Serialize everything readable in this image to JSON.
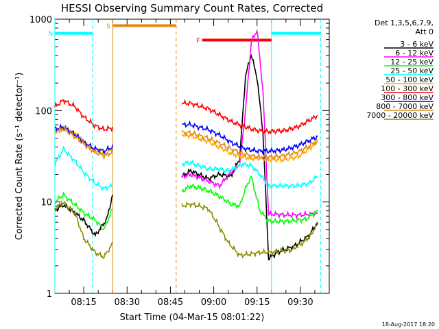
{
  "chart_data": {
    "type": "line",
    "title": "HESSI Observing Summary Count Rates, Corrected",
    "xlabel": "Start Time (04-Mar-15 08:01:22)",
    "ylabel": "Corrected Count Rate (s⁻¹ detector⁻¹)",
    "y_scale": "log",
    "ylim": [
      1,
      1000
    ],
    "xlim": [
      "08:05",
      "09:40"
    ],
    "x_tick_labels": [
      "08:15",
      "08:30",
      "08:45",
      "09:00",
      "09:15",
      "09:30"
    ],
    "y_tick_labels": [
      "1",
      "10",
      "100",
      "1000"
    ],
    "grid": false,
    "legend_position": "top-right",
    "legend_header": [
      "Det 1,3,5,6,7,9,",
      "Att 0"
    ],
    "footer_date": "18-Aug-2017 18:20",
    "series": [
      {
        "name": "3 - 6 keV",
        "color": "#000000",
        "x": [
          "08:05",
          "08:08",
          "08:12",
          "08:15",
          "08:19",
          "08:23",
          "08:25",
          "08:49",
          "08:52",
          "08:58",
          "09:02",
          "09:06",
          "09:09",
          "09:11",
          "09:13",
          "09:15",
          "09:17",
          "09:19",
          "09:22",
          "09:28",
          "09:33",
          "09:36"
        ],
        "values": [
          8.2,
          9.3,
          7.6,
          6.3,
          4.3,
          6.5,
          12,
          19,
          22,
          18,
          20,
          19,
          30,
          240,
          410,
          230,
          60,
          2.4,
          2.8,
          3.3,
          4.3,
          6.0
        ]
      },
      {
        "name": "6 - 12 keV",
        "color": "#ff00ff",
        "x": [
          "08:49",
          "08:52",
          "08:58",
          "09:02",
          "09:06",
          "09:09",
          "09:11",
          "09:13",
          "09:15",
          "09:17",
          "09:19",
          "09:25",
          "09:30",
          "09:36"
        ],
        "values": [
          19,
          20,
          17,
          15,
          21,
          26,
          100,
          560,
          760,
          170,
          7.4,
          7.2,
          7.2,
          7.5
        ]
      },
      {
        "name": "12 - 25 keV",
        "color": "#00ff00",
        "x": [
          "08:05",
          "08:08",
          "08:12",
          "08:15",
          "08:19",
          "08:22",
          "08:25",
          "08:49",
          "08:52",
          "08:56",
          "08:59",
          "09:03",
          "09:06",
          "09:09",
          "09:11",
          "09:13",
          "09:16",
          "09:19",
          "09:22",
          "09:27",
          "09:32",
          "09:36"
        ],
        "values": [
          10,
          12,
          9.3,
          7.6,
          6.3,
          5.0,
          8.5,
          13,
          15,
          14,
          13,
          11,
          9.5,
          9.0,
          14,
          19,
          8.0,
          6.2,
          6.1,
          6.2,
          6.5,
          8.0
        ]
      },
      {
        "name": "25 - 50 keV",
        "color": "#00ffff",
        "x": [
          "08:05",
          "08:08",
          "08:12",
          "08:15",
          "08:19",
          "08:22",
          "08:25",
          "08:49",
          "08:52",
          "08:58",
          "09:01",
          "09:04",
          "09:07",
          "09:10",
          "09:13",
          "09:16",
          "09:19",
          "09:24",
          "09:29",
          "09:33",
          "09:36"
        ],
        "values": [
          26,
          38,
          28,
          21,
          16,
          14,
          15,
          26,
          27,
          23,
          23,
          22,
          23,
          26,
          25,
          20,
          15,
          15,
          15,
          16,
          19
        ]
      },
      {
        "name": "50 - 100 keV",
        "color": "#ffaa00",
        "x": [
          "08:05",
          "08:08",
          "08:12",
          "08:15",
          "08:19",
          "08:22",
          "08:25",
          "08:49",
          "08:52",
          "08:58",
          "09:02",
          "09:06",
          "09:10",
          "09:13",
          "09:16",
          "09:19",
          "09:24",
          "09:29",
          "09:33",
          "09:36"
        ],
        "values": [
          58,
          64,
          56,
          45,
          36,
          34,
          37,
          55,
          53,
          46,
          40,
          34,
          31,
          30,
          30,
          29,
          29,
          31,
          38,
          46
        ]
      },
      {
        "name": "100 - 300 keV",
        "color": "#ff0000",
        "x": [
          "08:05",
          "08:08",
          "08:12",
          "08:15",
          "08:19",
          "08:22",
          "08:25",
          "08:49",
          "08:52",
          "08:58",
          "09:02",
          "09:06",
          "09:10",
          "09:13",
          "09:16",
          "09:19",
          "09:24",
          "09:29",
          "09:33",
          "09:36"
        ],
        "values": [
          110,
          130,
          110,
          85,
          68,
          62,
          65,
          120,
          120,
          105,
          90,
          76,
          68,
          63,
          60,
          59,
          60,
          66,
          78,
          88
        ]
      },
      {
        "name": "300 - 800 keV",
        "color": "#0000ff",
        "x": [
          "08:05",
          "08:08",
          "08:12",
          "08:15",
          "08:19",
          "08:22",
          "08:25",
          "08:49",
          "08:52",
          "08:58",
          "09:02",
          "09:06",
          "09:10",
          "09:13",
          "09:16",
          "09:19",
          "09:24",
          "09:29",
          "09:33",
          "09:36"
        ],
        "values": [
          63,
          66,
          55,
          45,
          38,
          36,
          40,
          70,
          70,
          62,
          54,
          45,
          39,
          37,
          36,
          36,
          37,
          41,
          47,
          52
        ]
      },
      {
        "name": "800 - 7000 keV",
        "color": "#e08c1e",
        "x": [
          "08:05",
          "08:08",
          "08:12",
          "08:15",
          "08:19",
          "08:22",
          "08:25",
          "08:49",
          "08:52",
          "08:58",
          "09:02",
          "09:06",
          "09:10",
          "09:13",
          "09:16",
          "09:19",
          "09:24",
          "09:29",
          "09:33",
          "09:36"
        ],
        "values": [
          60,
          63,
          52,
          43,
          35,
          32,
          35,
          58,
          57,
          50,
          44,
          38,
          34,
          32,
          31,
          31,
          32,
          35,
          41,
          47
        ]
      },
      {
        "name": "7000 - 20000 keV",
        "color": "#8b8b00",
        "x": [
          "08:05",
          "08:08",
          "08:12",
          "08:15",
          "08:19",
          "08:22",
          "08:25",
          "08:49",
          "08:52",
          "08:58",
          "09:01",
          "09:05",
          "09:09",
          "09:13",
          "09:16",
          "09:19",
          "09:23",
          "09:27",
          "09:31",
          "09:34",
          "09:36"
        ],
        "values": [
          8.5,
          9.8,
          7.5,
          4.0,
          2.8,
          2.5,
          3.5,
          9.0,
          9.5,
          8.5,
          6.0,
          3.6,
          2.6,
          2.7,
          2.8,
          2.8,
          2.9,
          3.0,
          3.6,
          4.5,
          6.0
        ]
      }
    ],
    "vertical_markers": [
      {
        "x": "08:05",
        "color": "#00ffff",
        "style": "solid"
      },
      {
        "x": "08:18",
        "color": "#00ffff",
        "style": "dashed"
      },
      {
        "x": "08:25",
        "color": "#e08c1e",
        "style": "solid"
      },
      {
        "x": "08:47",
        "color": "#e08c1e",
        "style": "dashed"
      },
      {
        "x": "09:20",
        "color": "#00ffff",
        "style": "solid"
      },
      {
        "x": "09:37",
        "color": "#00ffff",
        "style": "dashed"
      }
    ],
    "bars": [
      {
        "label": "N",
        "color": "#00ffff",
        "start": "08:05",
        "end": "08:18",
        "level": 700
      },
      {
        "label": "",
        "color": "#00ffff",
        "start": "09:20",
        "end": "09:37",
        "level": 700
      },
      {
        "label": "S",
        "color": "#e08c1e",
        "start": "08:25",
        "end": "08:47",
        "level": 850
      },
      {
        "label": "F",
        "color": "#ff0000",
        "start": "08:56",
        "end": "09:20",
        "level": 590
      }
    ]
  }
}
